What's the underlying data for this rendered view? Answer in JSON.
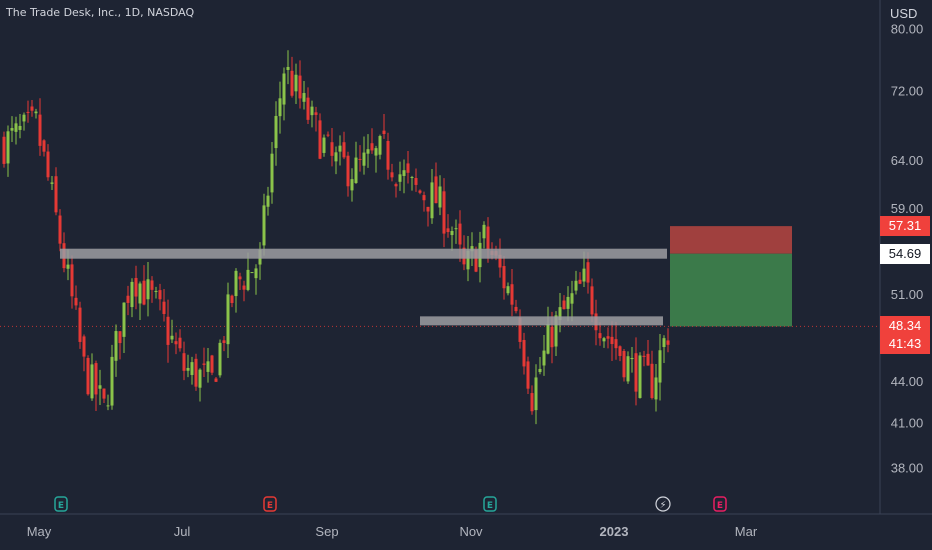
{
  "header": {
    "title": "The Trade Desk, Inc., 1D, NASDAQ",
    "currency": "USD"
  },
  "price_axis": {
    "ticks": [
      "80.00",
      "72.00",
      "64.00",
      "59.00",
      "51.00",
      "44.00",
      "41.00",
      "38.00"
    ],
    "badges": {
      "target": "57.31",
      "entry": "54.69",
      "last_price": "48.34",
      "countdown": "41:43"
    }
  },
  "time_axis": {
    "labels": [
      "May",
      "Jul",
      "Sep",
      "Nov",
      "2023",
      "Mar"
    ]
  },
  "colors": {
    "background": "#1e2433",
    "up": "#8bc34a",
    "down": "#e53935",
    "zone": "#9e9ea2",
    "target_zone": "#a0403e",
    "stop_zone": "#3b7a4a",
    "badge_red": "#f0413c"
  },
  "event_markers": [
    {
      "type": "earnings",
      "date": "May",
      "color": "#26a69a"
    },
    {
      "type": "earnings",
      "date": "Aug",
      "color": "#e53935"
    },
    {
      "type": "earnings",
      "date": "Nov",
      "color": "#26a69a"
    },
    {
      "type": "dividend",
      "date": "Feb",
      "color": "#ffffff"
    },
    {
      "type": "earnings",
      "date": "Feb",
      "color": "#e91e63"
    }
  ],
  "chart_data": {
    "type": "candlestick",
    "title": "The Trade Desk, Inc., 1D, NASDAQ",
    "y_axis": {
      "scale": "log",
      "unit": "USD"
    },
    "ylim": [
      36.5,
      82
    ],
    "x_range": [
      "Apr 2022",
      "Apr 2023"
    ],
    "close_path": [
      [
        0,
        66
      ],
      [
        8,
        68
      ],
      [
        15,
        54
      ],
      [
        20,
        45
      ],
      [
        25,
        42
      ],
      [
        32,
        53
      ],
      [
        38,
        50
      ],
      [
        45,
        45
      ],
      [
        52,
        44
      ],
      [
        58,
        52
      ],
      [
        64,
        54
      ],
      [
        70,
        75
      ],
      [
        75,
        70
      ],
      [
        82,
        64
      ],
      [
        88,
        63
      ],
      [
        95,
        65
      ],
      [
        102,
        61
      ],
      [
        108,
        60
      ],
      [
        112,
        57
      ],
      [
        115,
        53
      ],
      [
        120,
        56
      ],
      [
        128,
        50
      ],
      [
        132,
        43
      ],
      [
        137,
        48
      ],
      [
        145,
        52
      ],
      [
        150,
        48
      ],
      [
        157,
        45
      ],
      [
        162,
        44
      ],
      [
        166,
        48
      ]
    ],
    "horizontal_zones": [
      {
        "name": "resistance",
        "value": 54.69
      },
      {
        "name": "support",
        "value": 48.8
      }
    ],
    "position": {
      "entry": 54.69,
      "target": 57.31,
      "stop": 48.34,
      "last": 48.34,
      "countdown": "41:43"
    }
  }
}
